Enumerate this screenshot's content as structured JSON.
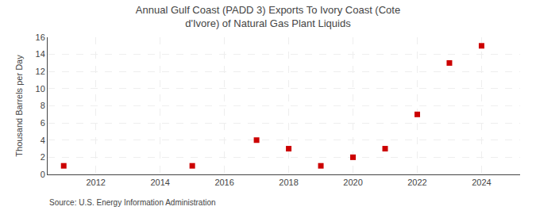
{
  "chart_data": {
    "type": "scatter",
    "title": "Annual Gulf Coast (PADD 3) Exports To Ivory Coast (Cote d'Ivore) of Natural Gas Plant Liquids",
    "ylabel": "Thousand Barrels per Day",
    "annotations": [
      "Source: U.S. Energy Information Administration"
    ],
    "x": [
      2011,
      2015,
      2017,
      2018,
      2019,
      2020,
      2021,
      2022,
      2023,
      2024
    ],
    "values": [
      1,
      1,
      4,
      3,
      1,
      2,
      3,
      7,
      13,
      15
    ],
    "color": "#cc0000",
    "marker": "square",
    "xlim": [
      2010.5,
      2025.2
    ],
    "xticks": [
      2012,
      2014,
      2016,
      2018,
      2020,
      2022,
      2024
    ],
    "ylim": [
      0,
      16
    ],
    "yticks": [
      0,
      2,
      4,
      6,
      8,
      10,
      12,
      14,
      16
    ],
    "grid": true
  }
}
